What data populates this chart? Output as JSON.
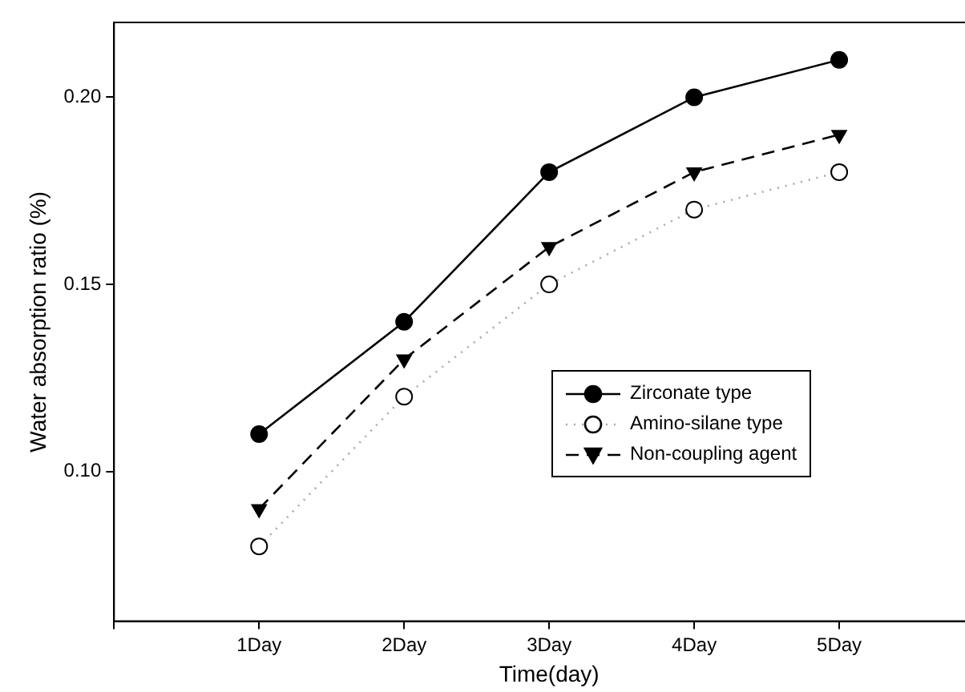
{
  "chart_data": {
    "type": "line",
    "xlabel": "Time(day)",
    "ylabel": "Water absorption ratio (%)",
    "categories": [
      null,
      "1Day",
      "2Day",
      "3Day",
      "4Day",
      "5Day",
      null
    ],
    "series": [
      {
        "name": "Zirconate type",
        "color": "#000000",
        "marker": "circle",
        "line_style": "solid",
        "values": [
          null,
          0.11,
          0.14,
          0.18,
          0.2,
          0.21,
          null
        ]
      },
      {
        "name": "Amino-silane type",
        "color": "#000000",
        "marker": "circle",
        "line_style": "dotted",
        "values": [
          null,
          0.08,
          0.12,
          0.15,
          0.17,
          0.18,
          null
        ]
      },
      {
        "name": "Non-coupling agent",
        "color": "#000000",
        "marker": "triangle",
        "line_style": "dashed",
        "values": [
          null,
          0.09,
          0.13,
          0.16,
          0.18,
          0.19,
          null
        ]
      }
    ],
    "ylim": [
      0.06,
      0.22
    ],
    "yticks": [
      {
        "value": 0.1,
        "label": "0.10"
      },
      {
        "value": 0.15,
        "label": "0.15"
      },
      {
        "value": 0.2,
        "label": "0.20"
      }
    ],
    "grid": false,
    "legend": "right"
  }
}
